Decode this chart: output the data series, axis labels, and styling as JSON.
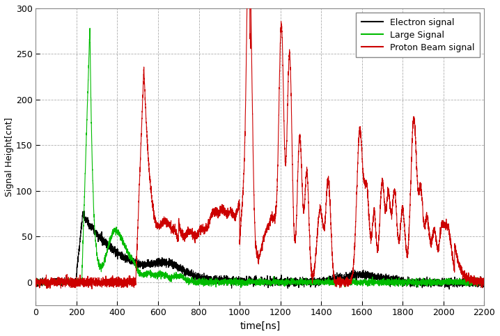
{
  "title": "",
  "xlabel": "time[ns]",
  "ylabel": "Signal Height[cnt]",
  "xlim": [
    0,
    2200
  ],
  "ylim": [
    -25,
    300
  ],
  "yticks": [
    0,
    50,
    100,
    150,
    200,
    250,
    300
  ],
  "xticks": [
    0,
    200,
    400,
    600,
    800,
    1000,
    1200,
    1400,
    1600,
    1800,
    2000,
    2200
  ],
  "background_color": "#ffffff",
  "grid_color": "#999999",
  "legend_labels": [
    "Electron signal",
    "Large Signal",
    "Proton Beam signal"
  ],
  "legend_colors": [
    "#000000",
    "#00bb00",
    "#cc0000"
  ],
  "line_width": 0.8,
  "fig_width": 7.18,
  "fig_height": 4.82,
  "dpi": 100
}
